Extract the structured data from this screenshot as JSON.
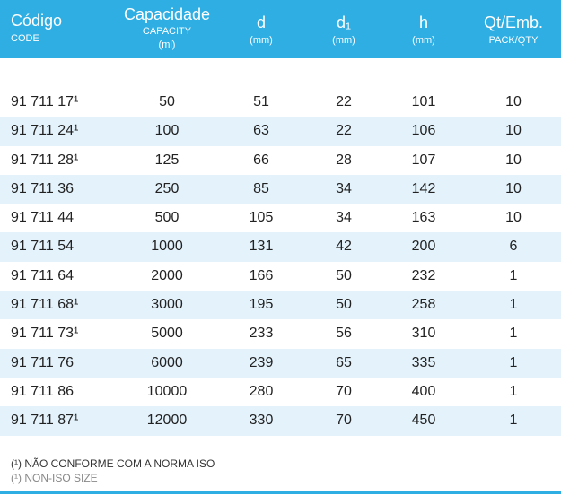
{
  "header": {
    "code": {
      "main": "Código",
      "sub": "CODE"
    },
    "capacity": {
      "main": "Capacidade",
      "sub1": "CAPACITY",
      "sub2": "(ml)"
    },
    "d": {
      "main": "d",
      "sub": "(mm)"
    },
    "d1": {
      "main": "d₁",
      "sub": "(mm)"
    },
    "h": {
      "main": "h",
      "sub": "(mm)"
    },
    "qty": {
      "main": "Qt/Emb.",
      "sub": "PACK/QTY"
    }
  },
  "rows": [
    {
      "code": "91 711 17¹",
      "capacity": "50",
      "d": "51",
      "d1": "22",
      "h": "101",
      "qty": "10"
    },
    {
      "code": "91 711 24¹",
      "capacity": "100",
      "d": "63",
      "d1": "22",
      "h": "106",
      "qty": "10"
    },
    {
      "code": "91 711 28¹",
      "capacity": "125",
      "d": "66",
      "d1": "28",
      "h": "107",
      "qty": "10"
    },
    {
      "code": "91 711 36",
      "capacity": "250",
      "d": "85",
      "d1": "34",
      "h": "142",
      "qty": "10"
    },
    {
      "code": "91 711 44",
      "capacity": "500",
      "d": "105",
      "d1": "34",
      "h": "163",
      "qty": "10"
    },
    {
      "code": "91 711 54",
      "capacity": "1000",
      "d": "131",
      "d1": "42",
      "h": "200",
      "qty": "6"
    },
    {
      "code": "91 711 64",
      "capacity": "2000",
      "d": "166",
      "d1": "50",
      "h": "232",
      "qty": "1"
    },
    {
      "code": "91 711 68¹",
      "capacity": "3000",
      "d": "195",
      "d1": "50",
      "h": "258",
      "qty": "1"
    },
    {
      "code": "91 711 73¹",
      "capacity": "5000",
      "d": "233",
      "d1": "56",
      "h": "310",
      "qty": "1"
    },
    {
      "code": "91 711 76",
      "capacity": "6000",
      "d": "239",
      "d1": "65",
      "h": "335",
      "qty": "1"
    },
    {
      "code": "91 711 86",
      "capacity": "10000",
      "d": "280",
      "d1": "70",
      "h": "400",
      "qty": "1"
    },
    {
      "code": "91 711 87¹",
      "capacity": "12000",
      "d": "330",
      "d1": "70",
      "h": "450",
      "qty": "1"
    }
  ],
  "notes": {
    "pt": "(¹) NÃO CONFORME COM A NORMA ISO",
    "en": "(¹) NON-ISO SIZE"
  },
  "colors": {
    "header_bg": "#2eaee3",
    "row_alt_bg": "#e3f2fb",
    "rule": "#2eaee3"
  }
}
